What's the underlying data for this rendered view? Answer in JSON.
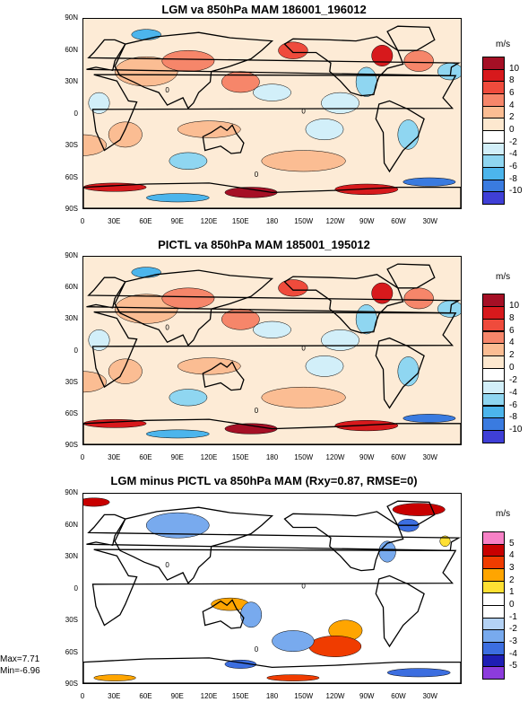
{
  "chart_data": [
    {
      "type": "heatmap",
      "title": "LGM va 850hPa MAM 186001_196012",
      "unit_label": "m/s",
      "y_ticks": [
        "90N",
        "60N",
        "30N",
        "0",
        "30S",
        "60S",
        "90S"
      ],
      "x_ticks": [
        "0",
        "30E",
        "60E",
        "90E",
        "120E",
        "150E",
        "180",
        "150W",
        "120W",
        "90W",
        "60W",
        "30W"
      ],
      "colorbar_labels": [
        "10",
        "8",
        "6",
        "4",
        "2",
        "0",
        "-2",
        "-4",
        "-6",
        "-8",
        "-10"
      ],
      "colorbar_colors": [
        "#a50f25",
        "#d7191c",
        "#ef4b3c",
        "#f6866a",
        "#fbbd93",
        "#fde8cf",
        "#ffffff",
        "#d2eff9",
        "#8fd6f1",
        "#4cb5ec",
        "#3a7be0",
        "#3f3fd6"
      ],
      "contour_label": "0"
    },
    {
      "type": "heatmap",
      "title": "PICTL va 850hPa MAM 185001_195012",
      "unit_label": "m/s",
      "y_ticks": [
        "90N",
        "60N",
        "30N",
        "0",
        "30S",
        "60S",
        "90S"
      ],
      "x_ticks": [
        "0",
        "30E",
        "60E",
        "90E",
        "120E",
        "150E",
        "180",
        "150W",
        "120W",
        "90W",
        "60W",
        "30W"
      ],
      "colorbar_labels": [
        "10",
        "8",
        "6",
        "4",
        "2",
        "0",
        "-2",
        "-4",
        "-6",
        "-8",
        "-10"
      ],
      "colorbar_colors": [
        "#a50f25",
        "#d7191c",
        "#ef4b3c",
        "#f6866a",
        "#fbbd93",
        "#fde8cf",
        "#ffffff",
        "#d2eff9",
        "#8fd6f1",
        "#4cb5ec",
        "#3a7be0",
        "#3f3fd6"
      ],
      "contour_label": "0"
    },
    {
      "type": "heatmap",
      "title": "LGM minus PICTL va 850hPa MAM (Rxy=0.87, RMSE=0)",
      "unit_label": "m/s",
      "y_ticks": [
        "90N",
        "60N",
        "30N",
        "0",
        "30S",
        "60S",
        "90S"
      ],
      "x_ticks": [
        "0",
        "30E",
        "60E",
        "90E",
        "120E",
        "150E",
        "180",
        "150W",
        "120W",
        "90W",
        "60W",
        "30W"
      ],
      "colorbar_labels": [
        "5",
        "4",
        "3",
        "2",
        "1",
        "0",
        "-1",
        "-2",
        "-3",
        "-4",
        "-5"
      ],
      "colorbar_colors": [
        "#f781c6",
        "#c80000",
        "#f03c00",
        "#ffa500",
        "#ffe033",
        "#ffffff",
        "#ffffff",
        "#b4d2f5",
        "#78aaee",
        "#3c6ee0",
        "#1e1eb4",
        "#8c3cdc"
      ],
      "contour_label": "0",
      "max_label": "Max=7.71",
      "min_label": "Min=-6.96"
    }
  ]
}
